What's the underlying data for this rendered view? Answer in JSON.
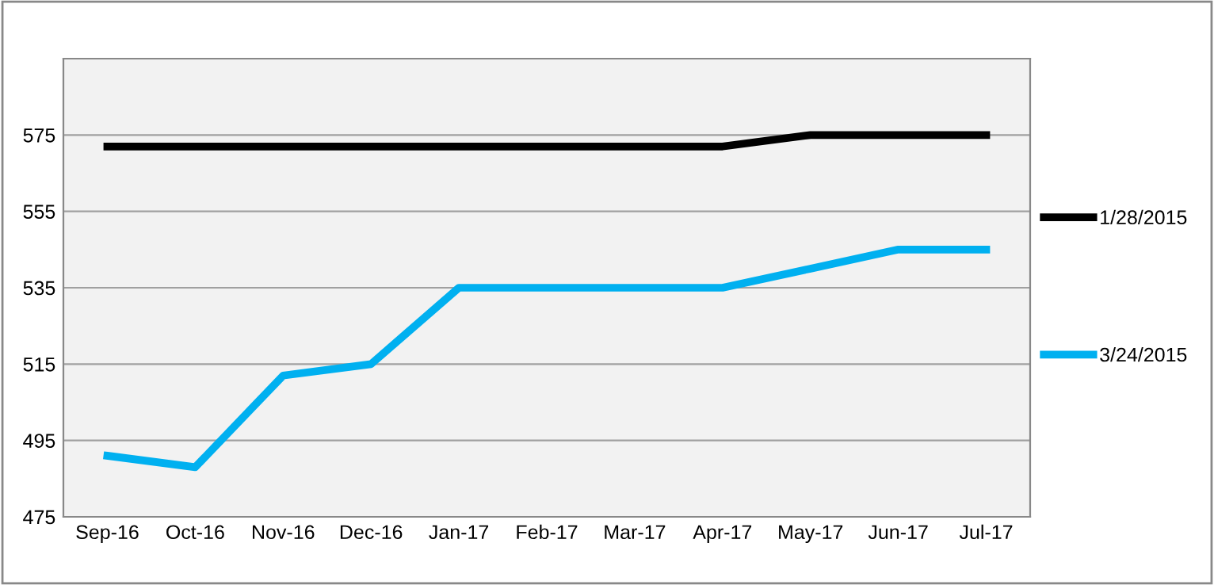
{
  "chart_data": {
    "type": "line",
    "categories": [
      "Sep-16",
      "Oct-16",
      "Nov-16",
      "Dec-16",
      "Jan-17",
      "Feb-17",
      "Mar-17",
      "Apr-17",
      "May-17",
      "Jun-17",
      "Jul-17"
    ],
    "series": [
      {
        "name": "1/28/2015",
        "color": "#000000",
        "values": [
          572,
          572,
          572,
          572,
          572,
          572,
          572,
          572,
          575,
          575,
          575
        ]
      },
      {
        "name": "3/24/2015",
        "color": "#00b0f0",
        "values": [
          491,
          488,
          512,
          515,
          535,
          535,
          535,
          535,
          540,
          545,
          545
        ]
      }
    ],
    "ylim": [
      475,
      595
    ],
    "yticks": [
      475,
      495,
      515,
      535,
      555,
      575
    ],
    "grid": "y",
    "legend": "right",
    "marker": "none",
    "line_style": "solid"
  }
}
